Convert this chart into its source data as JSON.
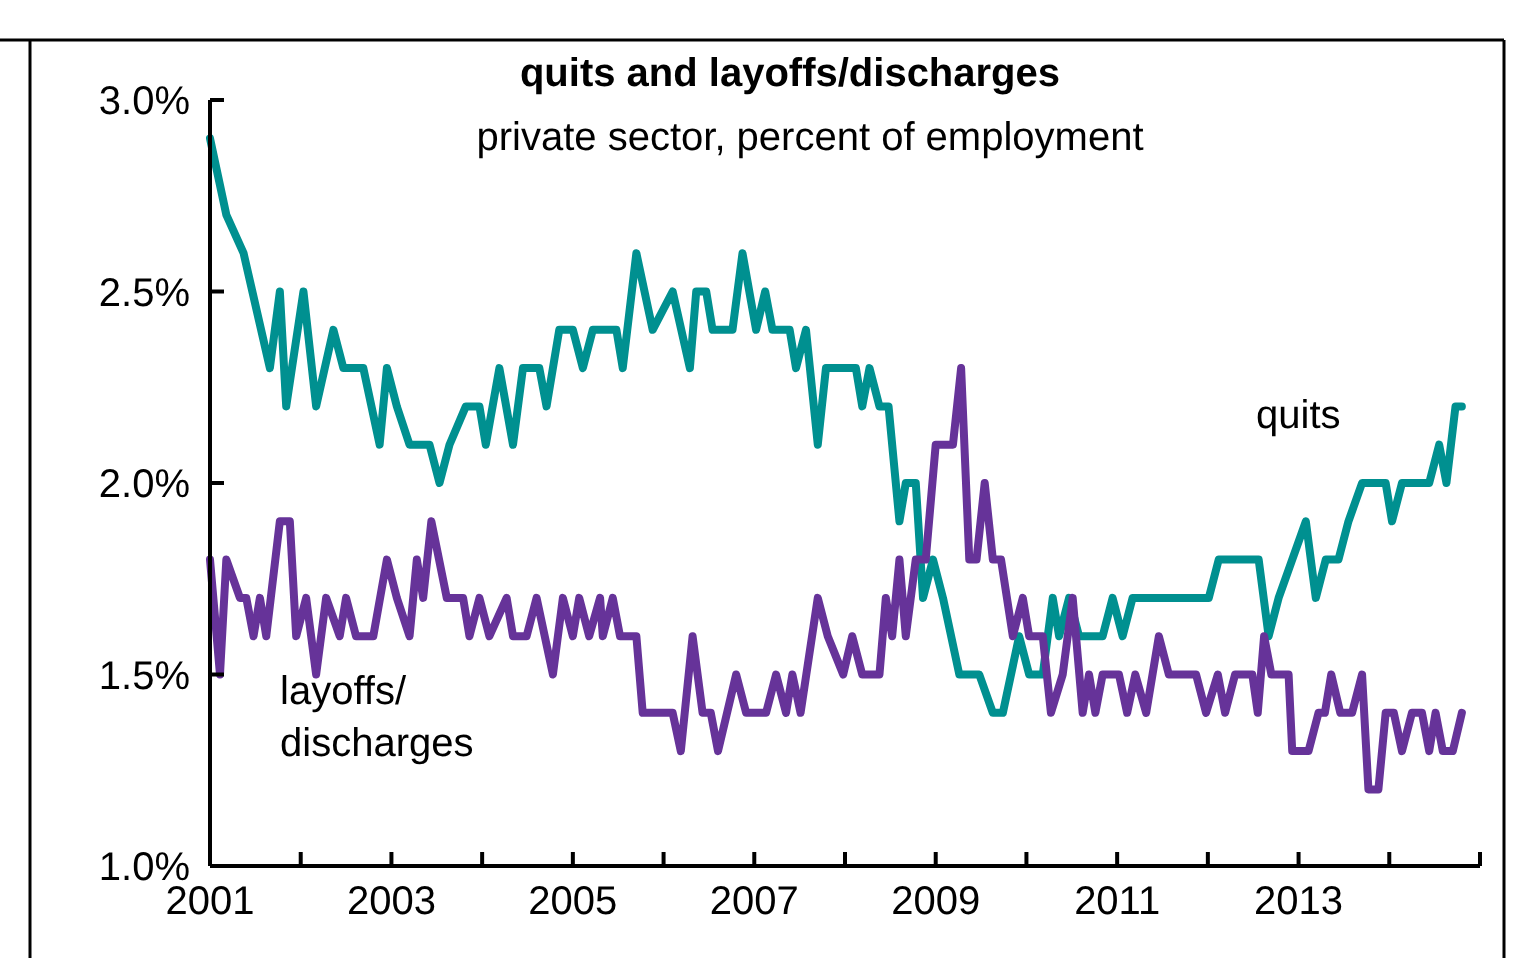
{
  "chart_data": {
    "type": "line",
    "title": "quits and layoffs/discharges",
    "subtitle": "private sector, percent of employment",
    "xlim": [
      2001,
      2015
    ],
    "xticks": [
      2001,
      {
        "value": 2002,
        "label": null
      },
      2003,
      {
        "value": 2004,
        "label": null
      },
      2005,
      {
        "value": 2006,
        "label": null
      },
      2007,
      {
        "value": 2008,
        "label": null
      },
      2009,
      {
        "value": 2010,
        "label": null
      },
      2011,
      {
        "value": 2012,
        "label": null
      },
      2013,
      {
        "value": 2014,
        "label": null
      },
      {
        "value": 2015,
        "label": null
      }
    ],
    "ylim": [
      1.0,
      3.0
    ],
    "yticks": [
      {
        "value": 1.0,
        "label": "1.0%"
      },
      {
        "value": 1.5,
        "label": "1.5%"
      },
      {
        "value": 2.0,
        "label": "2.0%"
      },
      {
        "value": 2.5,
        "label": "2.5%"
      },
      {
        "value": 3.0,
        "label": "3.0%"
      }
    ],
    "grid": false,
    "legend": false,
    "marker": "none",
    "line_style": "solid",
    "series": [
      {
        "name": "quits",
        "color": "#009090",
        "x": [
          2001.0,
          2001.18,
          2001.37,
          2001.66,
          2001.77,
          2001.84,
          2002.03,
          2002.17,
          2002.36,
          2002.47,
          2002.69,
          2002.87,
          2002.95,
          2003.06,
          2003.2,
          2003.42,
          2003.53,
          2003.64,
          2003.82,
          2003.97,
          2004.04,
          2004.19,
          2004.34,
          2004.45,
          2004.63,
          2004.71,
          2004.85,
          2005.0,
          2005.11,
          2005.22,
          2005.48,
          2005.55,
          2005.7,
          2005.88,
          2006.1,
          2006.29,
          2006.36,
          2006.47,
          2006.54,
          2006.76,
          2006.87,
          2007.02,
          2007.12,
          2007.2,
          2007.39,
          2007.46,
          2007.57,
          2007.7,
          2007.79,
          2008.12,
          2008.19,
          2008.27,
          2008.38,
          2008.48,
          2008.6,
          2008.67,
          2008.78,
          2008.86,
          2008.97,
          2009.08,
          2009.26,
          2009.48,
          2009.63,
          2009.74,
          2009.92,
          2010.03,
          2010.18,
          2010.29,
          2010.36,
          2010.47,
          2010.58,
          2010.84,
          2010.95,
          2011.06,
          2011.17,
          2012.01,
          2012.12,
          2012.56,
          2012.67,
          2012.78,
          2013.08,
          2013.19,
          2013.3,
          2013.44,
          2013.55,
          2013.7,
          2013.96,
          2014.03,
          2014.14,
          2014.44,
          2014.55,
          2014.63,
          2014.73,
          2014.8
        ],
        "values": [
          2.9,
          2.7,
          2.6,
          2.3,
          2.5,
          2.2,
          2.5,
          2.2,
          2.4,
          2.3,
          2.3,
          2.1,
          2.3,
          2.2,
          2.1,
          2.1,
          2.0,
          2.1,
          2.2,
          2.2,
          2.1,
          2.3,
          2.1,
          2.3,
          2.3,
          2.2,
          2.4,
          2.4,
          2.3,
          2.4,
          2.4,
          2.3,
          2.6,
          2.4,
          2.5,
          2.3,
          2.5,
          2.5,
          2.4,
          2.4,
          2.6,
          2.4,
          2.5,
          2.4,
          2.4,
          2.3,
          2.4,
          2.1,
          2.3,
          2.3,
          2.2,
          2.3,
          2.2,
          2.2,
          1.9,
          2.0,
          2.0,
          1.7,
          1.8,
          1.7,
          1.5,
          1.5,
          1.4,
          1.4,
          1.6,
          1.5,
          1.5,
          1.7,
          1.6,
          1.7,
          1.6,
          1.6,
          1.7,
          1.6,
          1.7,
          1.7,
          1.8,
          1.8,
          1.6,
          1.7,
          1.9,
          1.7,
          1.8,
          1.8,
          1.9,
          2.0,
          2.0,
          1.9,
          2.0,
          2.0,
          2.1,
          2.0,
          2.2,
          2.2
        ]
      },
      {
        "name": "layoffs/discharges",
        "color": "#663399",
        "x": [
          2001.0,
          2001.11,
          2001.18,
          2001.33,
          2001.4,
          2001.48,
          2001.55,
          2001.62,
          2001.77,
          2001.88,
          2001.95,
          2002.06,
          2002.17,
          2002.28,
          2002.43,
          2002.5,
          2002.61,
          2002.8,
          2002.95,
          2003.06,
          2003.2,
          2003.28,
          2003.35,
          2003.44,
          2003.61,
          2003.79,
          2003.86,
          2003.97,
          2004.08,
          2004.27,
          2004.34,
          2004.49,
          2004.6,
          2004.78,
          2004.89,
          2005.0,
          2005.07,
          2005.18,
          2005.3,
          2005.33,
          2005.44,
          2005.52,
          2005.7,
          2005.77,
          2006.1,
          2006.19,
          2006.32,
          2006.43,
          2006.52,
          2006.6,
          2006.8,
          2006.91,
          2007.13,
          2007.24,
          2007.35,
          2007.42,
          2007.51,
          2007.7,
          2007.81,
          2007.98,
          2008.08,
          2008.19,
          2008.38,
          2008.45,
          2008.52,
          2008.6,
          2008.67,
          2008.78,
          2008.89,
          2009.0,
          2009.19,
          2009.28,
          2009.37,
          2009.45,
          2009.54,
          2009.63,
          2009.72,
          2009.85,
          2009.96,
          2010.03,
          2010.18,
          2010.27,
          2010.4,
          2010.51,
          2010.62,
          2010.69,
          2010.76,
          2010.84,
          2011.02,
          2011.11,
          2011.2,
          2011.32,
          2011.46,
          2011.57,
          2011.87,
          2011.98,
          2012.11,
          2012.19,
          2012.3,
          2012.49,
          2012.55,
          2012.62,
          2012.7,
          2012.89,
          2012.93,
          2013.11,
          2013.22,
          2013.29,
          2013.36,
          2013.46,
          2013.59,
          2013.7,
          2013.77,
          2013.88,
          2013.96,
          2014.05,
          2014.14,
          2014.25,
          2014.36,
          2014.44,
          2014.51,
          2014.59,
          2014.7,
          2014.8
        ],
        "values": [
          1.8,
          1.5,
          1.8,
          1.7,
          1.7,
          1.6,
          1.7,
          1.6,
          1.9,
          1.9,
          1.6,
          1.7,
          1.5,
          1.7,
          1.6,
          1.7,
          1.6,
          1.6,
          1.8,
          1.7,
          1.6,
          1.8,
          1.7,
          1.9,
          1.7,
          1.7,
          1.6,
          1.7,
          1.6,
          1.7,
          1.6,
          1.6,
          1.7,
          1.5,
          1.7,
          1.6,
          1.7,
          1.6,
          1.7,
          1.6,
          1.7,
          1.6,
          1.6,
          1.4,
          1.4,
          1.3,
          1.6,
          1.4,
          1.4,
          1.3,
          1.5,
          1.4,
          1.4,
          1.5,
          1.4,
          1.5,
          1.4,
          1.7,
          1.6,
          1.5,
          1.6,
          1.5,
          1.5,
          1.7,
          1.6,
          1.8,
          1.6,
          1.8,
          1.8,
          2.1,
          2.1,
          2.3,
          1.8,
          1.8,
          2.0,
          1.8,
          1.8,
          1.6,
          1.7,
          1.6,
          1.6,
          1.4,
          1.5,
          1.7,
          1.4,
          1.5,
          1.4,
          1.5,
          1.5,
          1.4,
          1.5,
          1.4,
          1.6,
          1.5,
          1.5,
          1.4,
          1.5,
          1.4,
          1.5,
          1.5,
          1.4,
          1.6,
          1.5,
          1.5,
          1.3,
          1.3,
          1.4,
          1.4,
          1.5,
          1.4,
          1.4,
          1.5,
          1.2,
          1.2,
          1.4,
          1.4,
          1.3,
          1.4,
          1.4,
          1.3,
          1.4,
          1.3,
          1.3,
          1.4
        ]
      }
    ]
  }
}
